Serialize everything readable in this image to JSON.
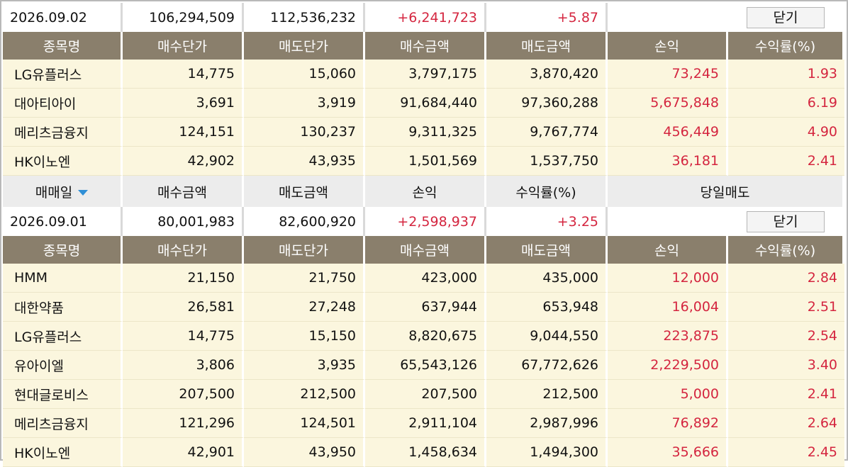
{
  "block1": {
    "summary": {
      "date": "2026.09.02",
      "buy_amount": "106,294,509",
      "sell_amount": "112,536,232",
      "profit": "+6,241,723",
      "rate": "+5.87",
      "close_label": "닫기"
    },
    "headers": [
      "종목명",
      "매수단가",
      "매도단가",
      "매수금액",
      "매도금액",
      "손익",
      "수익률(%)"
    ],
    "rows": [
      [
        "LG유플러스",
        "14,775",
        "15,060",
        "3,797,175",
        "3,870,420",
        "73,245",
        "1.93"
      ],
      [
        "대아티아이",
        "3,691",
        "3,919",
        "91,684,440",
        "97,360,288",
        "5,675,848",
        "6.19"
      ],
      [
        "메리츠금융지",
        "124,151",
        "130,237",
        "9,311,325",
        "9,767,774",
        "456,449",
        "4.90"
      ],
      [
        "HK이노엔",
        "42,902",
        "43,935",
        "1,501,569",
        "1,537,750",
        "36,181",
        "2.41"
      ]
    ]
  },
  "subheader": {
    "date_label": "매매일",
    "buy_amount": "매수금액",
    "sell_amount": "매도금액",
    "profit": "손익",
    "rate": "수익률(%)",
    "same_day_sell": "당일매도"
  },
  "block2": {
    "summary": {
      "date": "2026.09.01",
      "buy_amount": "80,001,983",
      "sell_amount": "82,600,920",
      "profit": "+2,598,937",
      "rate": "+3.25",
      "close_label": "닫기"
    },
    "headers": [
      "종목명",
      "매수단가",
      "매도단가",
      "매수금액",
      "매도금액",
      "손익",
      "수익률(%)"
    ],
    "rows": [
      [
        "HMM",
        "21,150",
        "21,750",
        "423,000",
        "435,000",
        "12,000",
        "2.84"
      ],
      [
        "대한약품",
        "26,581",
        "27,248",
        "637,944",
        "653,948",
        "16,004",
        "2.51"
      ],
      [
        "LG유플러스",
        "14,775",
        "15,150",
        "8,820,675",
        "9,044,550",
        "223,875",
        "2.54"
      ],
      [
        "유아이엘",
        "3,806",
        "3,935",
        "65,543,126",
        "67,772,626",
        "2,229,500",
        "3.40"
      ],
      [
        "현대글로비스",
        "207,500",
        "212,500",
        "207,500",
        "212,500",
        "5,000",
        "2.41"
      ],
      [
        "메리츠금융지",
        "121,296",
        "124,501",
        "2,911,104",
        "2,987,996",
        "76,892",
        "2.64"
      ],
      [
        "HK이노엔",
        "42,901",
        "43,950",
        "1,458,634",
        "1,494,300",
        "35,666",
        "2.45"
      ]
    ]
  },
  "colors": {
    "header_bg": "#8a7f6c",
    "row_bg": "#fbf6de",
    "subheader_bg": "#ececec",
    "profit_red": "#d4253f",
    "sort_arrow": "#2f8fd6"
  },
  "icons": {
    "sort": "sort-down-triangle-icon"
  }
}
